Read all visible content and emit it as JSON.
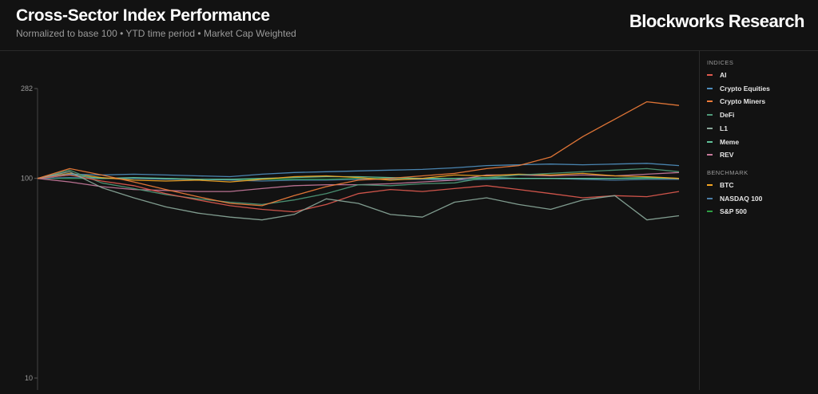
{
  "header": {
    "title": "Cross-Sector Index Performance",
    "subtitle": "Normalized to base 100 • YTD time period • Market Cap Weighted",
    "brand": "Blockworks Research"
  },
  "legend": {
    "indices_label": "INDICES",
    "benchmark_label": "BENCHMARK"
  },
  "chart_data": {
    "type": "line",
    "y_scale": "log",
    "ylim": [
      10,
      282
    ],
    "y_ticks": [
      282,
      100,
      10
    ],
    "grid": false,
    "legend_position": "right",
    "x": [
      0,
      10,
      20,
      30,
      40,
      50,
      60,
      70,
      80,
      90,
      100,
      110,
      120,
      130,
      140,
      150,
      160,
      170,
      180,
      190,
      200
    ],
    "series": [
      {
        "name": "AI",
        "group": "indices",
        "color": "#e05a4f",
        "values": [
          100,
          104,
          97,
          92,
          84,
          78,
          73,
          70,
          68,
          74,
          84,
          88,
          86,
          89,
          92,
          88,
          84,
          80,
          82,
          81,
          86
        ]
      },
      {
        "name": "Crypto Equities",
        "group": "indices",
        "color": "#4f8fbf",
        "values": [
          100,
          105,
          104,
          105,
          104,
          103,
          102,
          105,
          107,
          108,
          109,
          110,
          111,
          113,
          116,
          117,
          118,
          117,
          118,
          119,
          116
        ]
      },
      {
        "name": "Crypto Miners",
        "group": "indices",
        "color": "#f07d3a",
        "values": [
          100,
          112,
          104,
          96,
          88,
          81,
          75,
          73,
          82,
          91,
          98,
          100,
          103,
          106,
          112,
          116,
          128,
          162,
          198,
          242,
          232
        ]
      },
      {
        "name": "DeFi",
        "group": "indices",
        "color": "#4f9a7a",
        "values": [
          100,
          110,
          95,
          89,
          83,
          79,
          76,
          74,
          78,
          84,
          93,
          92,
          94,
          95,
          101,
          104,
          106,
          108,
          110,
          112,
          108
        ]
      },
      {
        "name": "L1",
        "group": "indices",
        "color": "#8aa89a",
        "values": [
          100,
          108,
          90,
          80,
          72,
          67,
          64,
          62,
          66,
          79,
          75,
          66,
          64,
          76,
          80,
          74,
          70,
          78,
          82,
          62,
          65
        ]
      },
      {
        "name": "Meme",
        "group": "indices",
        "color": "#62c29a",
        "values": [
          100,
          104,
          100,
          101,
          100,
          99,
          99,
          100,
          101,
          102,
          102,
          101,
          100,
          100,
          101,
          100,
          100,
          100,
          100,
          101,
          100
        ]
      },
      {
        "name": "REV",
        "group": "indices",
        "color": "#c87a9c",
        "values": [
          100,
          96,
          91,
          88,
          87,
          86,
          86,
          89,
          92,
          93,
          93,
          94,
          96,
          98,
          104,
          104,
          103,
          104,
          103,
          105,
          107
        ]
      },
      {
        "name": "BTC",
        "group": "benchmark",
        "color": "#f5a623",
        "values": [
          100,
          106,
          101,
          98,
          97,
          98,
          96,
          99,
          102,
          103,
          101,
          98,
          100,
          104,
          103,
          105,
          104,
          106,
          103,
          102,
          100
        ]
      },
      {
        "name": "NASDAQ 100",
        "group": "benchmark",
        "color": "#4c7fa8",
        "values": [
          100,
          101,
          100,
          100,
          99,
          99,
          98,
          97,
          98,
          98,
          99,
          99,
          99,
          98,
          99,
          100,
          100,
          99,
          98,
          99,
          99
        ]
      },
      {
        "name": "S&P 500",
        "group": "benchmark",
        "color": "#2ea043",
        "values": [
          100,
          100,
          100,
          100,
          100,
          99,
          99,
          99,
          99,
          99,
          100,
          100,
          100,
          100,
          100,
          100,
          100,
          100,
          100,
          100,
          100
        ]
      }
    ]
  }
}
